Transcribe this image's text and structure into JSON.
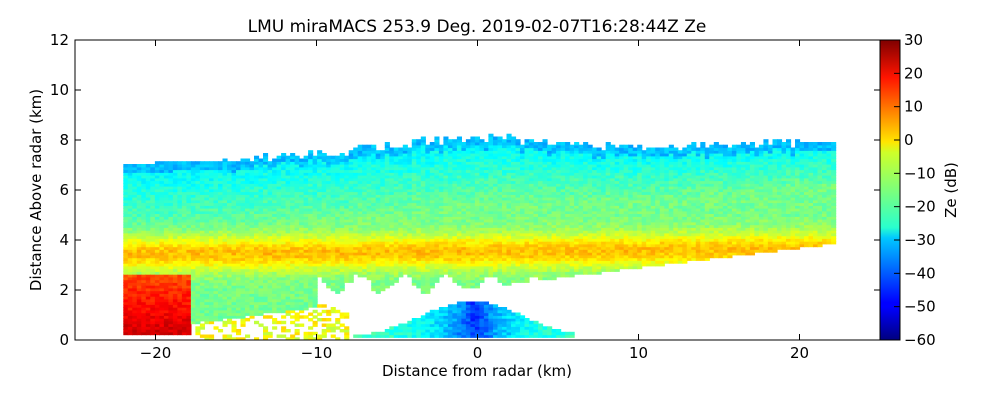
{
  "chart_data": {
    "type": "heatmap",
    "title": "LMU miraMACS 253.9 Deg. 2019-02-07T16:28:44Z  Ze",
    "xlabel": "Distance from radar (km)",
    "ylabel": "Distance Above radar  (km)",
    "xlim": [
      -25,
      25
    ],
    "ylim": [
      0,
      12
    ],
    "xticks": [
      -20,
      -10,
      0,
      10,
      20
    ],
    "xtick_labels": [
      "−20",
      "−10",
      "0",
      "10",
      "20"
    ],
    "yticks": [
      0,
      2,
      4,
      6,
      8,
      10,
      12
    ],
    "ytick_labels": [
      "0",
      "2",
      "4",
      "6",
      "8",
      "10",
      "12"
    ],
    "grid": false,
    "colorbar": {
      "label": "Ze (dB)",
      "range": [
        -60,
        30
      ],
      "ticks": [
        30,
        20,
        10,
        0,
        -10,
        -20,
        -30,
        -40,
        -50,
        -60
      ],
      "tick_labels": [
        "30",
        "20",
        "10",
        "0",
        "−10",
        "−20",
        "−30",
        "−40",
        "−50",
        "−60"
      ],
      "colormap": "jet"
    },
    "field_description": {
      "radar_position_km": [
        0,
        0
      ],
      "scan_extent_km": [
        -22,
        22
      ],
      "main_layer": {
        "bottom_left_km": 0.3,
        "top_left_km": 7.0,
        "bottom_right_km": 3.8,
        "top_right_km": 7.9
      },
      "cloud_top_km": 8.6,
      "bright_band_km": 3.4,
      "near_surface_echo": {
        "x_range_km": [
          -8,
          6
        ],
        "height_range_km": [
          0,
          1.6
        ]
      }
    },
    "colors": {
      "low": "#00007f",
      "mid": "#7fff7f",
      "high": "#7f0000"
    }
  }
}
